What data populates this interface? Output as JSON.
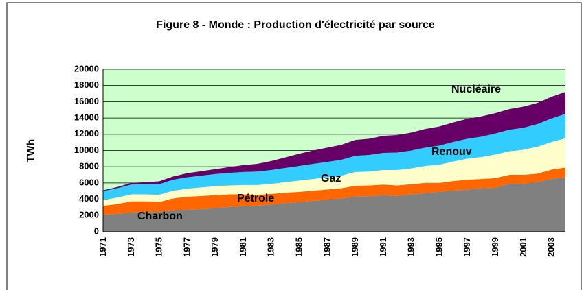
{
  "chart_data": {
    "type": "stacked_area",
    "title": "Figure 8 - Monde : Production d'électricité par source",
    "y_label": "TWh",
    "categories": [
      "1971",
      null,
      "1973",
      null,
      "1975",
      null,
      "1977",
      null,
      "1979",
      null,
      "1981",
      null,
      "1983",
      null,
      "1985",
      null,
      "1987",
      null,
      "1989",
      null,
      "1991",
      null,
      "1993",
      null,
      "1995",
      null,
      "1997",
      null,
      "1999",
      null,
      "2001",
      null,
      "2003",
      null
    ],
    "series": [
      {
        "name": "Charbon",
        "color": "#808080",
        "values": [
          2100,
          2200,
          2350,
          2400,
          2450,
          2600,
          2700,
          2750,
          2900,
          3050,
          3150,
          3200,
          3350,
          3500,
          3650,
          3800,
          3950,
          4100,
          4300,
          4350,
          4500,
          4400,
          4600,
          4750,
          4900,
          5050,
          5200,
          5350,
          5400,
          5900,
          5900,
          6100,
          6500,
          6700
        ]
      },
      {
        "name": "Pétrole",
        "color": "#ff6600",
        "values": [
          1100,
          1200,
          1400,
          1350,
          1200,
          1500,
          1600,
          1650,
          1600,
          1550,
          1450,
          1350,
          1300,
          1300,
          1250,
          1250,
          1250,
          1250,
          1350,
          1350,
          1300,
          1300,
          1250,
          1250,
          1100,
          1200,
          1200,
          1150,
          1200,
          1100,
          1100,
          1050,
          1150,
          1200
        ]
      },
      {
        "name": "Gaz",
        "color": "#ffffcc",
        "values": [
          700,
          800,
          850,
          850,
          900,
          950,
          1000,
          1050,
          1100,
          1100,
          1150,
          1200,
          1250,
          1300,
          1400,
          1450,
          1500,
          1550,
          1700,
          1700,
          1800,
          1900,
          1950,
          2100,
          2250,
          2400,
          2600,
          2700,
          2900,
          2900,
          3100,
          3300,
          3400,
          3600
        ]
      },
      {
        "name": "Renouv",
        "color": "#33ccff",
        "values": [
          1100,
          1150,
          1200,
          1250,
          1300,
          1350,
          1400,
          1450,
          1500,
          1550,
          1600,
          1650,
          1700,
          1750,
          1800,
          1850,
          1900,
          1950,
          2000,
          2050,
          2100,
          2150,
          2200,
          2250,
          2350,
          2400,
          2450,
          2500,
          2600,
          2650,
          2700,
          2800,
          2900,
          3000
        ]
      },
      {
        "name": "Nucléaire",
        "color": "#660066",
        "values": [
          100,
          150,
          200,
          250,
          350,
          400,
          500,
          550,
          600,
          700,
          850,
          950,
          1100,
          1300,
          1500,
          1650,
          1750,
          1850,
          1950,
          2000,
          2100,
          2150,
          2200,
          2300,
          2350,
          2400,
          2450,
          2500,
          2500,
          2550,
          2600,
          2600,
          2650,
          2700
        ]
      }
    ],
    "ylim": [
      0,
      20000
    ],
    "yticks": [
      0,
      2000,
      4000,
      6000,
      8000,
      10000,
      12000,
      14000,
      16000,
      18000,
      20000
    ],
    "grid": true,
    "plot_background": "#ccffcc"
  }
}
